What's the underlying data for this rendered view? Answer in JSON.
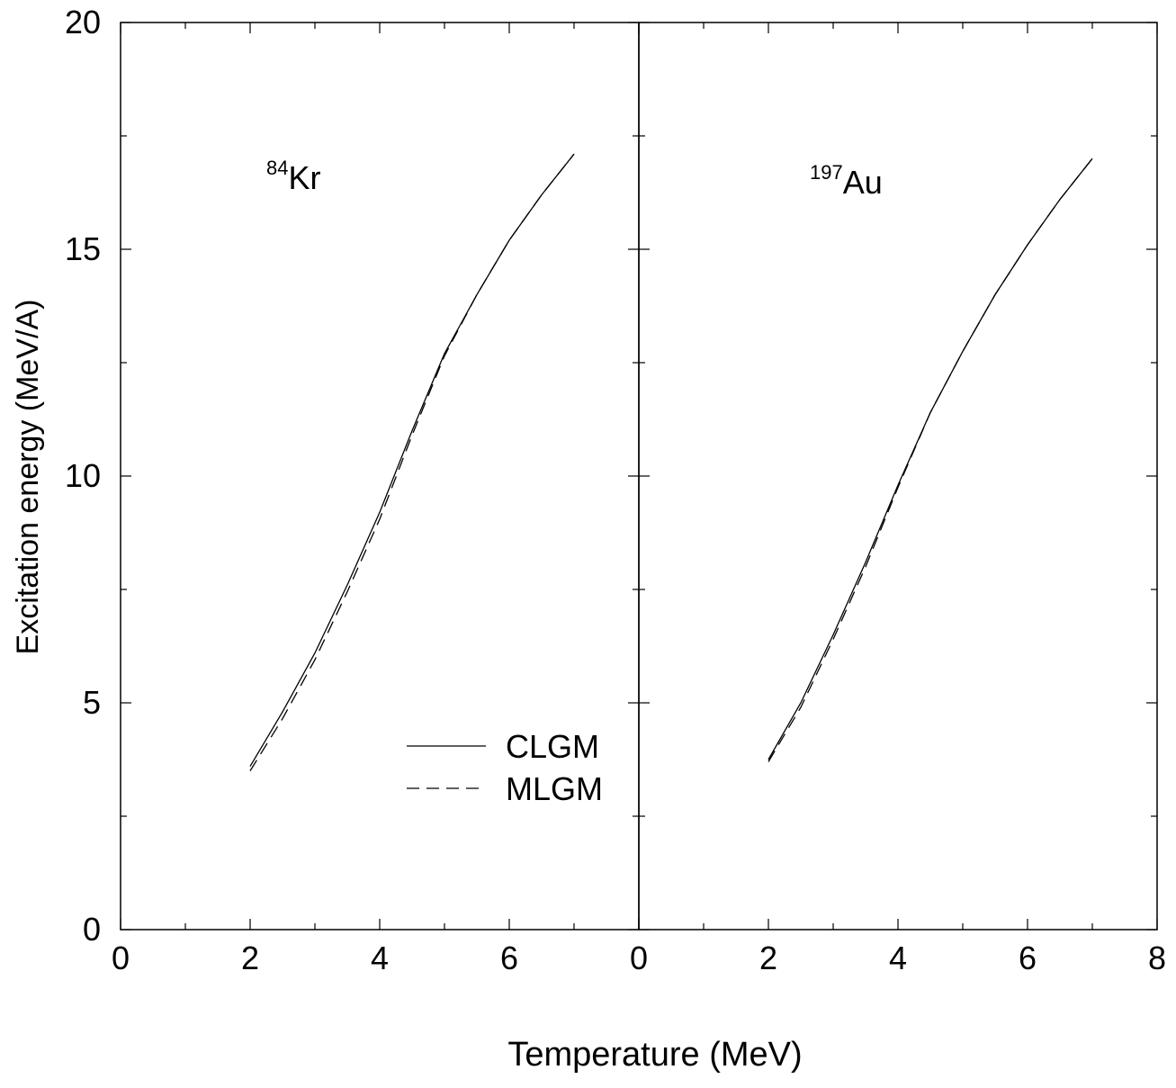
{
  "chart_data": {
    "type": "line",
    "xlabel": "Temperature (MeV)",
    "ylabel": "Excitation energy (MeV/A)",
    "legend": {
      "placement": "bottom-right of left panel",
      "entries": [
        {
          "name": "CLGM",
          "style": "solid"
        },
        {
          "name": "MLGM",
          "style": "dashed"
        }
      ]
    },
    "panels": [
      {
        "label_sup": "84",
        "label_main": "Kr",
        "xlim": [
          0,
          8
        ],
        "ylim": [
          0,
          20
        ],
        "xticks": [
          0,
          2,
          4,
          6
        ],
        "yticks": [
          0,
          5,
          10,
          15,
          20
        ],
        "series": [
          {
            "name": "CLGM",
            "style": "solid",
            "x": [
              2.0,
              2.5,
              3.0,
              3.5,
              4.0,
              4.5,
              5.0,
              5.5,
              6.0,
              6.5,
              7.0
            ],
            "y": [
              3.6,
              4.8,
              6.1,
              7.6,
              9.2,
              11.0,
              12.7,
              14.0,
              15.2,
              16.2,
              17.1
            ]
          },
          {
            "name": "MLGM",
            "style": "dashed",
            "x": [
              2.0,
              2.5,
              3.0,
              3.5,
              4.0,
              4.5,
              5.0,
              5.5,
              6.0,
              6.5,
              7.0
            ],
            "y": [
              3.5,
              4.65,
              5.95,
              7.45,
              9.05,
              10.9,
              12.65,
              14.0,
              15.2,
              16.2,
              17.1
            ]
          }
        ]
      },
      {
        "label_sup": "197",
        "label_main": "Au",
        "xlim": [
          0,
          8
        ],
        "ylim": [
          0,
          20
        ],
        "xticks": [
          0,
          2,
          4,
          6,
          8
        ],
        "yticks": [
          0,
          5,
          10,
          15,
          20
        ],
        "series": [
          {
            "name": "CLGM",
            "style": "solid",
            "x": [
              2.0,
              2.5,
              3.0,
              3.5,
              4.0,
              4.5,
              5.0,
              5.5,
              6.0,
              6.5,
              7.0
            ],
            "y": [
              3.75,
              5.0,
              6.5,
              8.1,
              9.8,
              11.4,
              12.75,
              14.0,
              15.1,
              16.1,
              17.0
            ]
          },
          {
            "name": "MLGM",
            "style": "dashed",
            "x": [
              2.0,
              2.5,
              3.0,
              3.5,
              4.0,
              4.5,
              5.0,
              5.5,
              6.0,
              6.5,
              7.0
            ],
            "y": [
              3.7,
              4.9,
              6.4,
              8.0,
              9.75,
              11.4,
              12.75,
              14.0,
              15.1,
              16.1,
              17.0
            ]
          }
        ]
      }
    ]
  }
}
